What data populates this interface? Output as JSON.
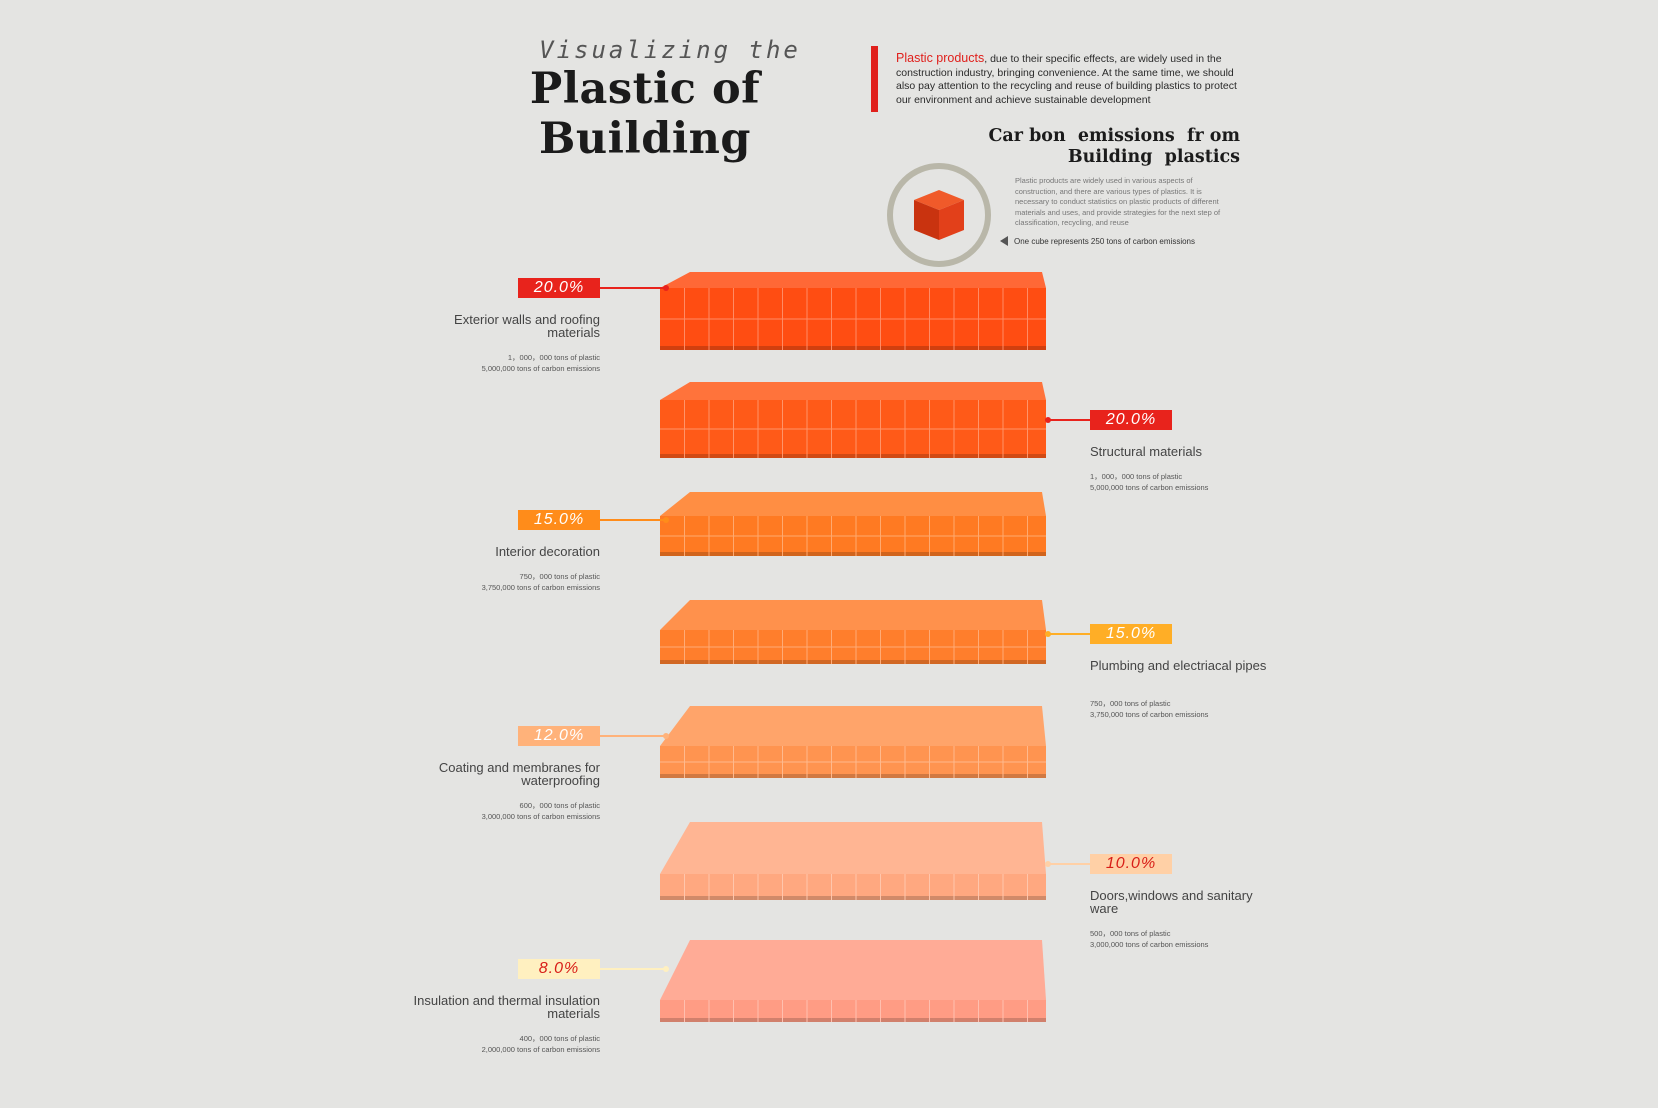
{
  "header": {
    "subtitle": "Visualizing the",
    "title": "Plastic of Building",
    "intro_highlight": "Plastic products",
    "intro_text": ", due to their specific effects, are widely used in the construction industry, bringing convenience. At the same time, we should also pay attention to the recycling and reuse of building plastics to protect our environment and achieve sustainable development"
  },
  "section": {
    "title_line1": "Car bon  emissions  fr om",
    "title_line2": "Building  plastics",
    "description": "Plastic products are widely used in various aspects of construction, and there are various types of plastics. It is necessary to conduct statistics on plastic products of different materials and uses, and provide strategies for the next step of classification, recycling, and reuse",
    "legend": "One cube represents 250 tons of carbon emissions",
    "legend_icon": "cube-icon"
  },
  "colors": {
    "accent_red": "#e0201c",
    "background": "#e4e4e2"
  },
  "chart_data": {
    "type": "stacked-cube-layers",
    "unit_note": "One cube represents 250 tons of carbon emissions",
    "categories": [
      {
        "name": "Exterior walls and roofing materials",
        "percent": 20.0,
        "percent_label": "20.0%",
        "plastic_label": "1，000，000 tons of plastic",
        "emission_label": "5,000,000 tons of carbon emissions",
        "side": "left",
        "color": "#ff4d12",
        "label_bg": "#e8231c",
        "label_fg": "#ffffff"
      },
      {
        "name": "Structural materials",
        "percent": 20.0,
        "percent_label": "20.0%",
        "plastic_label": "1，000，000 tons of plastic",
        "emission_label": "5,000,000 tons of carbon emissions",
        "side": "right",
        "color": "#ff5a18",
        "label_bg": "#e8231c",
        "label_fg": "#ffffff"
      },
      {
        "name": "Interior decoration",
        "percent": 15.0,
        "percent_label": "15.0%",
        "plastic_label": "750，000 tons of plastic",
        "emission_label": "3,750,000 tons of carbon emissions",
        "side": "left",
        "color": "#ff7a22",
        "label_bg": "#ff8c1a",
        "label_fg": "#ffffff"
      },
      {
        "name": "Plumbing and electriacal pipes",
        "percent": 15.0,
        "percent_label": "15.0%",
        "plastic_label": "750，000 tons of plastic",
        "emission_label": "3,750,000 tons of carbon emissions",
        "side": "right",
        "color": "#ff7e2c",
        "label_bg": "#ffae26",
        "label_fg": "#ffffff"
      },
      {
        "name": "Coating and membranes for waterproofing",
        "percent": 12.0,
        "percent_label": "12.0%",
        "plastic_label": "600，000 tons of plastic",
        "emission_label": "3,000,000 tons of carbon emissions",
        "side": "left",
        "color": "#ff9450",
        "label_bg": "#ffb27a",
        "label_fg": "#ffffff"
      },
      {
        "name": "Doors,windows and sanitary ware",
        "percent": 10.0,
        "percent_label": "10.0%",
        "plastic_label": "500，000 tons of plastic",
        "emission_label": "3,000,000 tons of carbon emissions",
        "side": "right",
        "color": "#ffa880",
        "label_bg": "#ffd0a6",
        "label_fg": "#d81e18"
      },
      {
        "name": "Insulation and thermal insulation materials",
        "percent": 8.0,
        "percent_label": "8.0%",
        "plastic_label": "400，000 tons of plastic",
        "emission_label": "2,000,000 tons of carbon emissions",
        "side": "left",
        "color": "#ff9c84",
        "label_bg": "#fff0c0",
        "label_fg": "#d81e18"
      }
    ]
  }
}
